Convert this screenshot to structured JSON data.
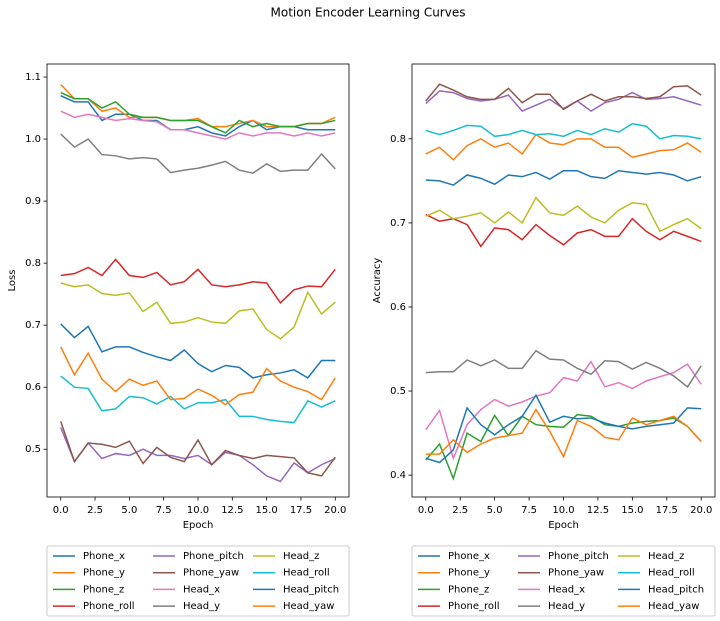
{
  "title": "Motion Encoder Learning Curves",
  "chart_data": [
    {
      "type": "line",
      "xlabel": "Epoch",
      "ylabel": "Loss",
      "legend": "below",
      "x": [
        0,
        1,
        2,
        3,
        4,
        5,
        6,
        7,
        8,
        9,
        10,
        11,
        12,
        13,
        14,
        15,
        16,
        17,
        18,
        19,
        20
      ],
      "xlim": [
        -1,
        21
      ],
      "xticks": [
        {
          "value": 0,
          "label": "0.0"
        },
        {
          "value": 2.5,
          "label": "2.5"
        },
        {
          "value": 5,
          "label": "5.0"
        },
        {
          "value": 7.5,
          "label": "7.5"
        },
        {
          "value": 10,
          "label": "10.0"
        },
        {
          "value": 12.5,
          "label": "12.5"
        },
        {
          "value": 15,
          "label": "15.0"
        },
        {
          "value": 17.5,
          "label": "17.5"
        },
        {
          "value": 20,
          "label": "20.0"
        }
      ],
      "ylim": [
        0.423,
        1.121
      ],
      "yticks": [
        0.5,
        0.6,
        0.7,
        0.8,
        0.9,
        {
          "value": 1,
          "label": "1.0"
        },
        1.1
      ],
      "series": [
        {
          "name": "Phone_x",
          "color": "#1f77b4",
          "values": [
            1.07,
            1.06,
            1.06,
            1.03,
            1.04,
            1.04,
            1.03,
            1.03,
            1.015,
            1.015,
            1.02,
            1.01,
            1.005,
            1.02,
            1.03,
            1.015,
            1.02,
            1.02,
            1.015,
            1.015,
            1.015
          ]
        },
        {
          "name": "Phone_y",
          "color": "#ff7f0e",
          "values": [
            1.088,
            1.065,
            1.065,
            1.045,
            1.05,
            1.035,
            1.035,
            1.035,
            1.03,
            1.03,
            1.033,
            1.02,
            1.02,
            1.025,
            1.03,
            1.02,
            1.02,
            1.02,
            1.025,
            1.025,
            1.035
          ]
        },
        {
          "name": "Phone_z",
          "color": "#2ca02c",
          "values": [
            1.075,
            1.065,
            1.065,
            1.05,
            1.06,
            1.04,
            1.035,
            1.035,
            1.03,
            1.03,
            1.03,
            1.02,
            1.01,
            1.03,
            1.02,
            1.025,
            1.02,
            1.02,
            1.025,
            1.025,
            1.03
          ]
        },
        {
          "name": "Phone_roll",
          "color": "#d62728",
          "values": [
            0.78,
            0.783,
            0.793,
            0.78,
            0.806,
            0.78,
            0.777,
            0.785,
            0.765,
            0.77,
            0.79,
            0.765,
            0.762,
            0.765,
            0.77,
            0.768,
            0.736,
            0.757,
            0.763,
            0.762,
            0.79
          ]
        },
        {
          "name": "Phone_pitch",
          "color": "#9467bd",
          "values": [
            0.535,
            0.48,
            0.51,
            0.485,
            0.493,
            0.49,
            0.5,
            0.49,
            0.49,
            0.485,
            0.49,
            0.475,
            0.495,
            0.49,
            0.475,
            0.457,
            0.448,
            0.478,
            0.462,
            0.475,
            0.485
          ]
        },
        {
          "name": "Phone_yaw",
          "color": "#8c564b",
          "values": [
            0.545,
            0.48,
            0.51,
            0.508,
            0.503,
            0.513,
            0.477,
            0.503,
            0.487,
            0.48,
            0.515,
            0.475,
            0.498,
            0.49,
            0.485,
            0.49,
            0.488,
            0.486,
            0.462,
            0.457,
            0.487
          ]
        },
        {
          "name": "Head_x",
          "color": "#e377c2",
          "values": [
            1.045,
            1.035,
            1.04,
            1.035,
            1.03,
            1.033,
            1.03,
            1.028,
            1.015,
            1.015,
            1.01,
            1.005,
            1.0,
            1.01,
            1.005,
            1.01,
            1.01,
            1.005,
            1.01,
            1.005,
            1.01
          ]
        },
        {
          "name": "Head_y",
          "color": "#7f7f7f",
          "values": [
            1.008,
            0.987,
            1.0,
            0.975,
            0.973,
            0.968,
            0.97,
            0.968,
            0.946,
            0.95,
            0.953,
            0.958,
            0.964,
            0.95,
            0.945,
            0.96,
            0.948,
            0.95,
            0.95,
            0.976,
            0.952
          ]
        },
        {
          "name": "Head_z",
          "color": "#bcbd22",
          "values": [
            0.768,
            0.762,
            0.765,
            0.751,
            0.748,
            0.752,
            0.722,
            0.737,
            0.703,
            0.705,
            0.712,
            0.705,
            0.703,
            0.723,
            0.726,
            0.693,
            0.678,
            0.697,
            0.753,
            0.718,
            0.737
          ]
        },
        {
          "name": "Head_roll",
          "color": "#17becf",
          "values": [
            0.618,
            0.6,
            0.598,
            0.562,
            0.565,
            0.585,
            0.583,
            0.573,
            0.585,
            0.565,
            0.575,
            0.575,
            0.58,
            0.553,
            0.553,
            0.548,
            0.545,
            0.543,
            0.578,
            0.568,
            0.578
          ]
        },
        {
          "name": "Head_pitch",
          "color": "#1f77b4",
          "values": [
            0.702,
            0.68,
            0.698,
            0.657,
            0.665,
            0.665,
            0.656,
            0.649,
            0.643,
            0.66,
            0.638,
            0.625,
            0.635,
            0.632,
            0.615,
            0.62,
            0.623,
            0.628,
            0.615,
            0.643,
            0.643
          ]
        },
        {
          "name": "Head_yaw",
          "color": "#ff7f0e",
          "values": [
            0.665,
            0.62,
            0.655,
            0.613,
            0.593,
            0.613,
            0.603,
            0.61,
            0.58,
            0.582,
            0.597,
            0.587,
            0.572,
            0.588,
            0.592,
            0.63,
            0.61,
            0.6,
            0.593,
            0.58,
            0.615
          ]
        }
      ]
    },
    {
      "type": "line",
      "xlabel": "Epoch",
      "ylabel": "Accuracy",
      "legend": "below",
      "x": [
        0,
        1,
        2,
        3,
        4,
        5,
        6,
        7,
        8,
        9,
        10,
        11,
        12,
        13,
        14,
        15,
        16,
        17,
        18,
        19,
        20
      ],
      "xlim": [
        -1,
        21
      ],
      "xticks": [
        {
          "value": 0,
          "label": "0.0"
        },
        {
          "value": 2.5,
          "label": "2.5"
        },
        {
          "value": 5,
          "label": "5.0"
        },
        {
          "value": 7.5,
          "label": "7.5"
        },
        {
          "value": 10,
          "label": "10.0"
        },
        {
          "value": 12.5,
          "label": "12.5"
        },
        {
          "value": 15,
          "label": "15.0"
        },
        {
          "value": 17.5,
          "label": "17.5"
        },
        {
          "value": 20,
          "label": "20.0"
        }
      ],
      "ylim": [
        0.374,
        0.889
      ],
      "yticks": [
        0.4,
        0.5,
        0.6,
        0.7,
        0.8
      ],
      "series": [
        {
          "name": "Phone_x",
          "color": "#1f77b4",
          "values": [
            0.751,
            0.75,
            0.745,
            0.757,
            0.753,
            0.746,
            0.757,
            0.755,
            0.76,
            0.752,
            0.762,
            0.762,
            0.755,
            0.753,
            0.762,
            0.76,
            0.758,
            0.76,
            0.757,
            0.75,
            0.755
          ]
        },
        {
          "name": "Phone_y",
          "color": "#ff7f0e",
          "values": [
            0.782,
            0.79,
            0.775,
            0.792,
            0.8,
            0.79,
            0.795,
            0.782,
            0.805,
            0.795,
            0.793,
            0.8,
            0.8,
            0.79,
            0.79,
            0.778,
            0.782,
            0.786,
            0.787,
            0.795,
            0.784
          ]
        },
        {
          "name": "Phone_z",
          "color": "#2ca02c",
          "values": [
            0.418,
            0.437,
            0.396,
            0.45,
            0.44,
            0.471,
            0.447,
            0.47,
            0.46,
            0.458,
            0.457,
            0.472,
            0.47,
            0.46,
            0.458,
            0.462,
            0.464,
            0.465,
            0.468,
            0.458,
            0.44
          ]
        },
        {
          "name": "Phone_roll",
          "color": "#d62728",
          "values": [
            0.71,
            0.702,
            0.705,
            0.698,
            0.672,
            0.694,
            0.692,
            0.68,
            0.698,
            0.685,
            0.674,
            0.688,
            0.692,
            0.684,
            0.684,
            0.705,
            0.69,
            0.68,
            0.69,
            0.684,
            0.678
          ]
        },
        {
          "name": "Phone_pitch",
          "color": "#9467bd",
          "values": [
            0.842,
            0.857,
            0.855,
            0.848,
            0.845,
            0.847,
            0.852,
            0.833,
            0.84,
            0.847,
            0.836,
            0.845,
            0.833,
            0.843,
            0.847,
            0.855,
            0.847,
            0.848,
            0.85,
            0.845,
            0.84
          ]
        },
        {
          "name": "Phone_yaw",
          "color": "#8c564b",
          "values": [
            0.845,
            0.865,
            0.858,
            0.85,
            0.847,
            0.847,
            0.86,
            0.843,
            0.853,
            0.853,
            0.835,
            0.845,
            0.853,
            0.845,
            0.85,
            0.85,
            0.848,
            0.85,
            0.862,
            0.863,
            0.852
          ]
        },
        {
          "name": "Head_x",
          "color": "#e377c2",
          "values": [
            0.454,
            0.477,
            0.42,
            0.46,
            0.478,
            0.49,
            0.482,
            0.487,
            0.494,
            0.498,
            0.516,
            0.512,
            0.535,
            0.505,
            0.51,
            0.503,
            0.512,
            0.517,
            0.522,
            0.532,
            0.508
          ]
        },
        {
          "name": "Head_y",
          "color": "#7f7f7f",
          "values": [
            0.522,
            0.523,
            0.523,
            0.537,
            0.53,
            0.537,
            0.527,
            0.527,
            0.548,
            0.538,
            0.537,
            0.527,
            0.52,
            0.536,
            0.535,
            0.526,
            0.534,
            0.527,
            0.518,
            0.505,
            0.53
          ]
        },
        {
          "name": "Head_z",
          "color": "#bcbd22",
          "values": [
            0.708,
            0.715,
            0.705,
            0.708,
            0.712,
            0.7,
            0.713,
            0.7,
            0.73,
            0.712,
            0.709,
            0.72,
            0.707,
            0.7,
            0.715,
            0.724,
            0.722,
            0.69,
            0.698,
            0.705,
            0.693
          ]
        },
        {
          "name": "Head_roll",
          "color": "#17becf",
          "values": [
            0.81,
            0.805,
            0.81,
            0.816,
            0.815,
            0.803,
            0.805,
            0.81,
            0.805,
            0.806,
            0.803,
            0.81,
            0.805,
            0.812,
            0.808,
            0.818,
            0.815,
            0.8,
            0.804,
            0.803,
            0.8
          ]
        },
        {
          "name": "Head_pitch",
          "color": "#1f77b4",
          "values": [
            0.42,
            0.415,
            0.43,
            0.48,
            0.46,
            0.448,
            0.46,
            0.47,
            0.495,
            0.463,
            0.47,
            0.467,
            0.468,
            0.462,
            0.458,
            0.455,
            0.458,
            0.46,
            0.462,
            0.48,
            0.479
          ]
        },
        {
          "name": "Head_yaw",
          "color": "#ff7f0e",
          "values": [
            0.425,
            0.425,
            0.442,
            0.427,
            0.437,
            0.444,
            0.447,
            0.45,
            0.478,
            0.452,
            0.422,
            0.465,
            0.458,
            0.445,
            0.442,
            0.468,
            0.46,
            0.465,
            0.47,
            0.458,
            0.44
          ]
        }
      ]
    }
  ]
}
